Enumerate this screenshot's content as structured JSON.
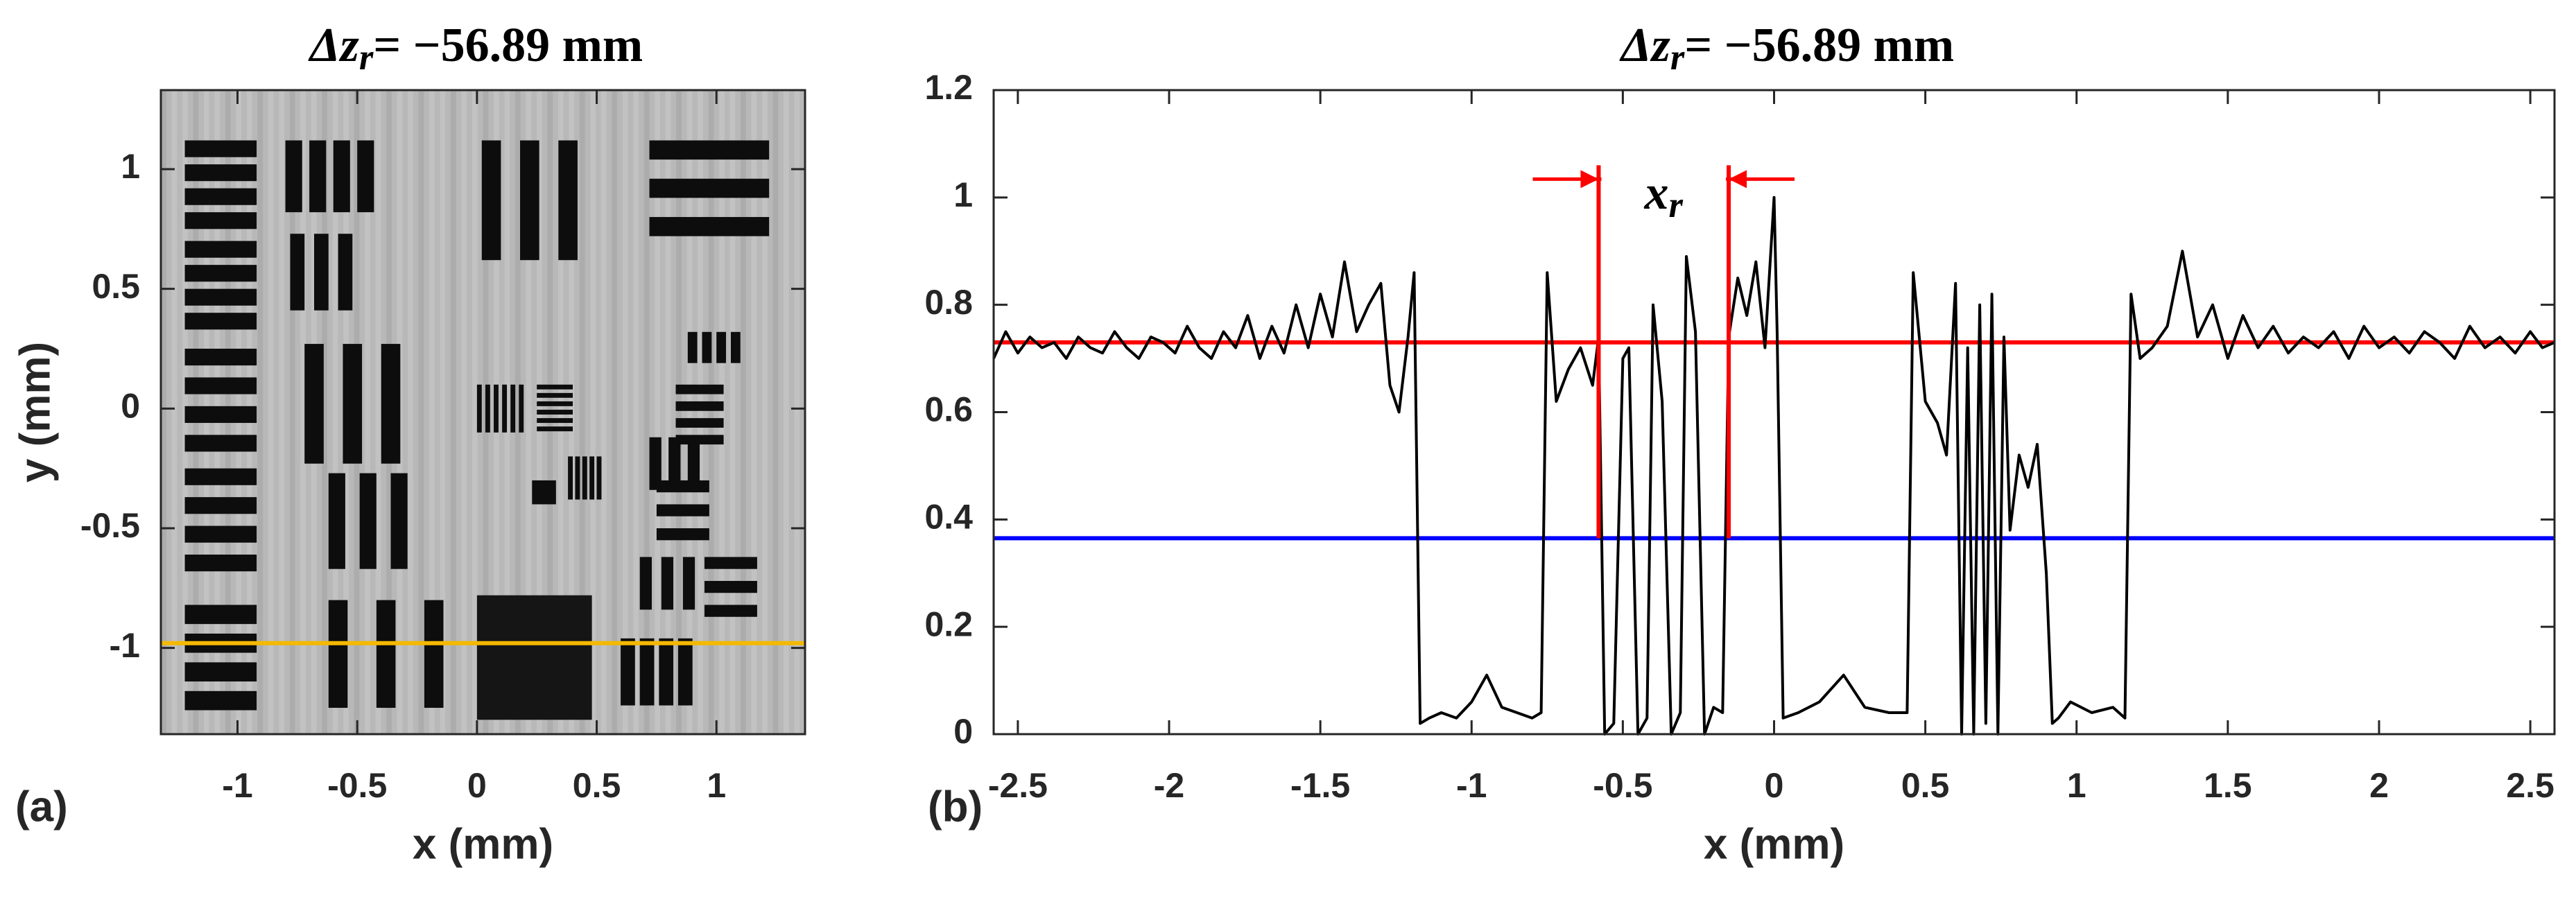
{
  "chart_data": [
    {
      "type": "image",
      "panel_label": "(a)",
      "title": {
        "symbol": "Δz",
        "sub": "r",
        "rest": "= −56.89 mm"
      },
      "xlabel": "x (mm)",
      "ylabel": "y (mm)",
      "xlim": [
        -1.32,
        1.37
      ],
      "ylim": [
        -1.36,
        1.33
      ],
      "xticks": [
        -1,
        -0.5,
        0,
        0.5,
        1
      ],
      "yticks": [
        -1,
        -0.5,
        0,
        0.5,
        1
      ],
      "hline": {
        "value": -0.98,
        "color": "#f5b800"
      }
    },
    {
      "type": "line",
      "panel_label": "(b)",
      "title": {
        "symbol": "Δz",
        "sub": "r",
        "rest": "= −56.89 mm"
      },
      "xlabel": "x (mm)",
      "xlim": [
        -2.58,
        2.58
      ],
      "ylim": [
        0,
        1.2
      ],
      "xticks": [
        -2.5,
        -2,
        -1.5,
        -1,
        -0.5,
        0,
        0.5,
        1,
        1.5,
        2,
        2.5
      ],
      "yticks": [
        0,
        0.2,
        0.4,
        0.6,
        0.8,
        1,
        1.2
      ],
      "color": "#000000",
      "x": [
        -2.58,
        -2.54,
        -2.5,
        -2.46,
        -2.42,
        -2.38,
        -2.34,
        -2.3,
        -2.26,
        -2.22,
        -2.18,
        -2.14,
        -2.1,
        -2.06,
        -2.02,
        -1.98,
        -1.94,
        -1.9,
        -1.86,
        -1.82,
        -1.78,
        -1.74,
        -1.7,
        -1.66,
        -1.62,
        -1.58,
        -1.54,
        -1.5,
        -1.46,
        -1.42,
        -1.38,
        -1.34,
        -1.3,
        -1.27,
        -1.24,
        -1.21,
        -1.19,
        -1.17,
        -1.14,
        -1.1,
        -1.05,
        -1.0,
        -0.95,
        -0.9,
        -0.85,
        -0.8,
        -0.77,
        -0.75,
        -0.72,
        -0.68,
        -0.64,
        -0.6,
        -0.58,
        -0.56,
        -0.53,
        -0.5,
        -0.48,
        -0.45,
        -0.42,
        -0.4,
        -0.37,
        -0.34,
        -0.31,
        -0.29,
        -0.26,
        -0.23,
        -0.2,
        -0.17,
        -0.15,
        -0.12,
        -0.09,
        -0.06,
        -0.03,
        0.0,
        0.01,
        0.03,
        0.08,
        0.15,
        0.23,
        0.3,
        0.38,
        0.44,
        0.46,
        0.5,
        0.54,
        0.57,
        0.6,
        0.62,
        0.64,
        0.66,
        0.68,
        0.7,
        0.72,
        0.74,
        0.76,
        0.78,
        0.81,
        0.84,
        0.87,
        0.9,
        0.92,
        0.94,
        0.98,
        1.05,
        1.12,
        1.16,
        1.18,
        1.21,
        1.25,
        1.3,
        1.35,
        1.4,
        1.45,
        1.5,
        1.55,
        1.6,
        1.65,
        1.7,
        1.75,
        1.8,
        1.85,
        1.9,
        1.95,
        2.0,
        2.05,
        2.1,
        2.15,
        2.2,
        2.25,
        2.3,
        2.35,
        2.4,
        2.45,
        2.5,
        2.54,
        2.58
      ],
      "values": [
        0.7,
        0.75,
        0.71,
        0.74,
        0.72,
        0.73,
        0.7,
        0.74,
        0.72,
        0.71,
        0.75,
        0.72,
        0.7,
        0.74,
        0.73,
        0.71,
        0.76,
        0.72,
        0.7,
        0.75,
        0.72,
        0.78,
        0.7,
        0.76,
        0.71,
        0.8,
        0.72,
        0.82,
        0.74,
        0.88,
        0.75,
        0.8,
        0.84,
        0.65,
        0.6,
        0.74,
        0.86,
        0.02,
        0.03,
        0.04,
        0.03,
        0.06,
        0.11,
        0.05,
        0.04,
        0.03,
        0.04,
        0.86,
        0.62,
        0.68,
        0.72,
        0.65,
        0.74,
        0.0,
        0.02,
        0.7,
        0.72,
        0.0,
        0.03,
        0.8,
        0.62,
        0.0,
        0.04,
        0.89,
        0.75,
        0.0,
        0.05,
        0.04,
        0.74,
        0.85,
        0.78,
        0.88,
        0.72,
        1.0,
        0.75,
        0.03,
        0.04,
        0.06,
        0.11,
        0.05,
        0.04,
        0.04,
        0.86,
        0.62,
        0.58,
        0.52,
        0.84,
        0.0,
        0.72,
        0.0,
        0.8,
        0.02,
        0.82,
        0.0,
        0.74,
        0.38,
        0.52,
        0.46,
        0.54,
        0.3,
        0.02,
        0.03,
        0.06,
        0.04,
        0.05,
        0.03,
        0.82,
        0.7,
        0.72,
        0.76,
        0.9,
        0.74,
        0.8,
        0.7,
        0.78,
        0.72,
        0.76,
        0.71,
        0.74,
        0.72,
        0.75,
        0.7,
        0.76,
        0.72,
        0.74,
        0.71,
        0.75,
        0.73,
        0.7,
        0.76,
        0.72,
        0.74,
        0.71,
        0.75,
        0.72,
        0.73
      ],
      "hlines": [
        {
          "value": 0.73,
          "color": "#ff0000"
        },
        {
          "value": 0.365,
          "color": "#0000ff"
        }
      ],
      "vlines": {
        "x": [
          -0.58,
          -0.15
        ],
        "ymin": 0.365,
        "ymax": 1.06,
        "color": "#ff0000"
      },
      "annotation": {
        "symbol": "x",
        "sub": "r",
        "x": -0.365,
        "y": 1.0
      }
    }
  ]
}
